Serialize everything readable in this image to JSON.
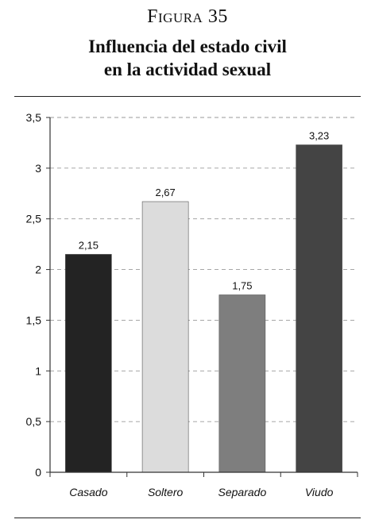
{
  "figure_label": "Figura 35",
  "title_lines": [
    "Influencia del estado civil",
    "en la actividad sexual"
  ],
  "chart_data": {
    "type": "bar",
    "categories": [
      "Casado",
      "Soltero",
      "Separado",
      "Viudo"
    ],
    "values": [
      2.15,
      2.67,
      1.75,
      3.23
    ],
    "data_labels": [
      "2,15",
      "2,67",
      "1,75",
      "3,23"
    ],
    "bar_colors": [
      "#232323",
      "#dcdcdc",
      "#7e7e7e",
      "#444444"
    ],
    "ylim": [
      0,
      3.5
    ],
    "yticks": [
      0,
      0.5,
      1,
      1.5,
      2,
      2.5,
      3,
      3.5
    ],
    "ytick_labels": [
      "0",
      "0,5",
      "1",
      "1,5",
      "2",
      "2,5",
      "3",
      "3,5"
    ],
    "grid": true,
    "grid_style": "dashed",
    "legend": "none"
  }
}
